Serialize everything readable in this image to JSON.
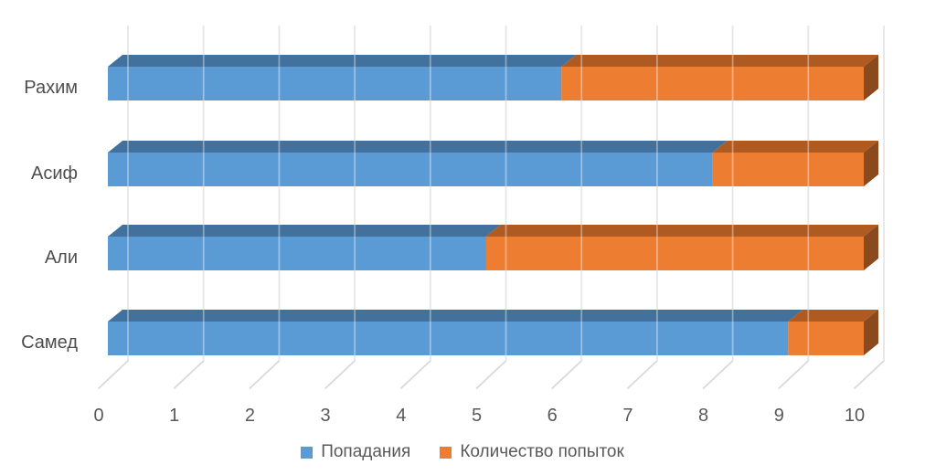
{
  "chart_data": {
    "type": "bar",
    "subtype": "horizontal-stacked-3d",
    "categories": [
      "Рахим",
      "Асиф",
      "Али",
      "Самед"
    ],
    "series": [
      {
        "name": "Попадания",
        "color": "#5B9BD5",
        "color_top": "#41719C",
        "values": [
          6,
          8,
          5,
          9
        ]
      },
      {
        "name": "Количество попыток",
        "color": "#ED7D31",
        "color_top": "#AE5A21",
        "color_side": "#8B4A1E",
        "values": [
          4,
          2,
          5,
          1
        ]
      }
    ],
    "xlim": [
      0,
      10
    ],
    "x_ticks": [
      "0",
      "1",
      "2",
      "3",
      "4",
      "5",
      "6",
      "7",
      "8",
      "9",
      "10"
    ],
    "gridlines": "vertical",
    "legend_position": "bottom",
    "gridline_color": "#D9D9D9",
    "text_color": "#595959",
    "category_text_color": "#4D4D4D",
    "background": "#FFFFFF"
  }
}
